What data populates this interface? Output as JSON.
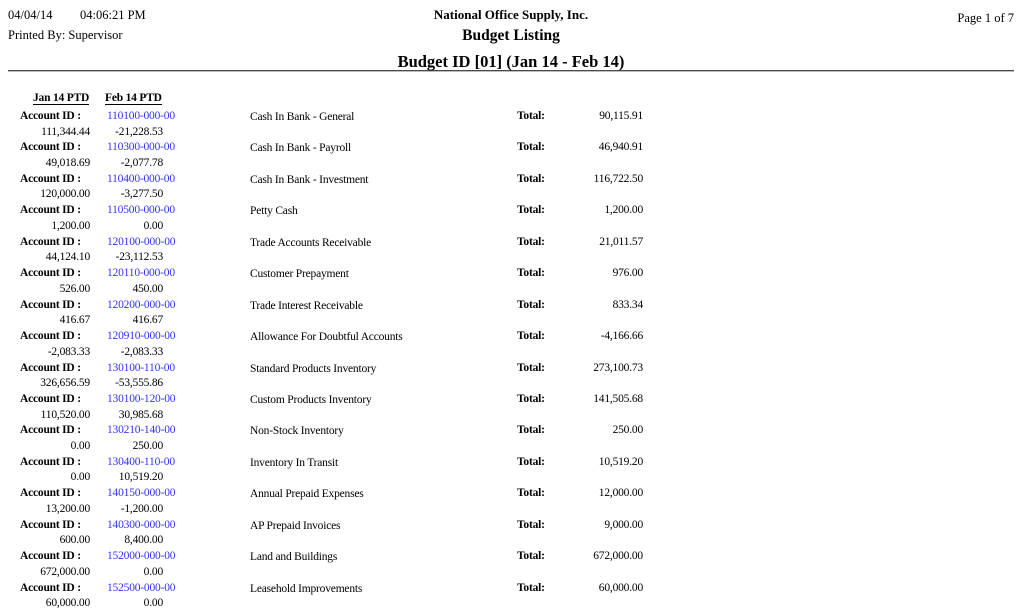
{
  "report_header": {
    "date": "04/04/14",
    "time": "04:06:21 PM",
    "printed_by": "Printed By: Supervisor",
    "company": "National Office Supply, Inc.",
    "title": "Budget Listing",
    "subtitle": "Budget ID [01] (Jan 14 - Feb 14)",
    "page": "Page 1 of 7"
  },
  "columns": {
    "jan": "Jan 14 PTD",
    "feb": "Feb 14 PTD"
  },
  "labels": {
    "account_id": "Account ID :",
    "total": "Total:"
  },
  "colors": {
    "account_link": "#3333FF"
  },
  "accounts": [
    {
      "id": "110100-000-00",
      "description": "Cash In Bank - General",
      "total": "90,115.91",
      "jan_ptd": "111,344.44",
      "feb_ptd": "-21,228.53"
    },
    {
      "id": "110300-000-00",
      "description": "Cash In Bank - Payroll",
      "total": "46,940.91",
      "jan_ptd": "49,018.69",
      "feb_ptd": "-2,077.78"
    },
    {
      "id": "110400-000-00",
      "description": "Cash In Bank - Investment",
      "total": "116,722.50",
      "jan_ptd": "120,000.00",
      "feb_ptd": "-3,277.50"
    },
    {
      "id": "110500-000-00",
      "description": "Petty Cash",
      "total": "1,200.00",
      "jan_ptd": "1,200.00",
      "feb_ptd": "0.00"
    },
    {
      "id": "120100-000-00",
      "description": "Trade Accounts Receivable",
      "total": "21,011.57",
      "jan_ptd": "44,124.10",
      "feb_ptd": "-23,112.53"
    },
    {
      "id": "120110-000-00",
      "description": "Customer Prepayment",
      "total": "976.00",
      "jan_ptd": "526.00",
      "feb_ptd": "450.00"
    },
    {
      "id": "120200-000-00",
      "description": "Trade Interest Receivable",
      "total": "833.34",
      "jan_ptd": "416.67",
      "feb_ptd": "416.67"
    },
    {
      "id": "120910-000-00",
      "description": "Allowance For Doubtful Accounts",
      "total": "-4,166.66",
      "jan_ptd": "-2,083.33",
      "feb_ptd": "-2,083.33"
    },
    {
      "id": "130100-110-00",
      "description": "Standard Products Inventory",
      "total": "273,100.73",
      "jan_ptd": "326,656.59",
      "feb_ptd": "-53,555.86"
    },
    {
      "id": "130100-120-00",
      "description": "Custom Products Inventory",
      "total": "141,505.68",
      "jan_ptd": "110,520.00",
      "feb_ptd": "30,985.68"
    },
    {
      "id": "130210-140-00",
      "description": "Non-Stock Inventory",
      "total": "250.00",
      "jan_ptd": "0.00",
      "feb_ptd": "250.00"
    },
    {
      "id": "130400-110-00",
      "description": "Inventory In Transit",
      "total": "10,519.20",
      "jan_ptd": "0.00",
      "feb_ptd": "10,519.20"
    },
    {
      "id": "140150-000-00",
      "description": "Annual Prepaid Expenses",
      "total": "12,000.00",
      "jan_ptd": "13,200.00",
      "feb_ptd": "-1,200.00"
    },
    {
      "id": "140300-000-00",
      "description": "AP Prepaid Invoices",
      "total": "9,000.00",
      "jan_ptd": "600.00",
      "feb_ptd": "8,400.00"
    },
    {
      "id": "152000-000-00",
      "description": "Land and Buildings",
      "total": "672,000.00",
      "jan_ptd": "672,000.00",
      "feb_ptd": "0.00"
    },
    {
      "id": "152500-000-00",
      "description": "Leasehold Improvements",
      "total": "60,000.00",
      "jan_ptd": "60,000.00",
      "feb_ptd": "0.00"
    }
  ]
}
